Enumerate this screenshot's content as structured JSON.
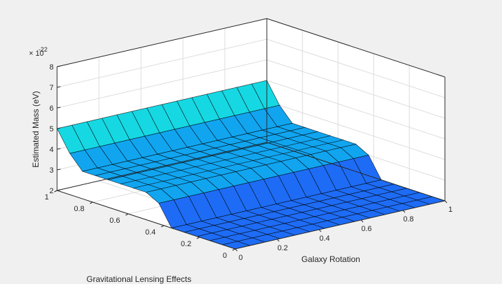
{
  "chart_data": {
    "type": "surface",
    "title": "",
    "xlabel": "Galaxy Rotation",
    "ylabel": "Gravitational Lensing Effects",
    "zlabel": "Estimated Mass (eV)",
    "z_exponent_label": "× 10",
    "z_exponent": "-22",
    "xlim": [
      0,
      1
    ],
    "ylim": [
      0,
      1
    ],
    "zlim": [
      2,
      8
    ],
    "x_ticks": [
      0,
      0.2,
      0.4,
      0.6,
      0.8,
      1
    ],
    "x_tick_labels": [
      "0",
      "0.2",
      "0.4",
      "0.6",
      "0.8",
      "1"
    ],
    "y_ticks": [
      0,
      0.2,
      0.4,
      0.6,
      0.8,
      1
    ],
    "y_tick_labels": [
      "0",
      "0.2",
      "0.4",
      "0.6",
      "0.8",
      "1"
    ],
    "z_ticks": [
      2,
      3,
      4,
      5,
      6,
      7,
      8
    ],
    "z_tick_labels": [
      "2",
      "3",
      "4",
      "5",
      "6",
      "7",
      "8"
    ],
    "grid": true,
    "colormap": [
      "#1e6cf5",
      "#11a5f0",
      "#16d8e3",
      "#38f2bb",
      "#87f58c",
      "#d4f24b",
      "#fbe62a"
    ],
    "x": [
      0,
      0.0714,
      0.1429,
      0.2143,
      0.2857,
      0.3571,
      0.4286,
      0.5,
      0.5714,
      0.6429,
      0.7143,
      0.7857,
      0.8571,
      0.9286,
      1
    ],
    "y": [
      0,
      0.0714,
      0.1429,
      0.2143,
      0.2857,
      0.3571,
      0.4286,
      0.5,
      0.5714,
      0.6429,
      0.7143,
      0.7857,
      0.8571,
      0.9286,
      1
    ],
    "z": [
      [
        2.0,
        2.0,
        2.0,
        2.0,
        2.0,
        2.0,
        2.0,
        2.0,
        2.0,
        2.0,
        2.0,
        2.0,
        2.0,
        2.0,
        2.0
      ],
      [
        2.0,
        2.0,
        2.0,
        2.0,
        2.0,
        2.0,
        2.0,
        2.0,
        2.0,
        2.0,
        2.0,
        2.0,
        2.0,
        2.0,
        2.0
      ],
      [
        2.0,
        2.0,
        2.0,
        2.0,
        2.0,
        2.0,
        2.0,
        2.0,
        2.0,
        2.0,
        2.0,
        2.0,
        2.0,
        2.0,
        2.0
      ],
      [
        2.0,
        2.0,
        2.0,
        2.0,
        2.0,
        2.0,
        2.0,
        2.0,
        2.0,
        2.0,
        2.0,
        2.0,
        2.0,
        2.0,
        2.0
      ],
      [
        2.0,
        2.0,
        2.0,
        2.0,
        2.0,
        2.0,
        2.0,
        2.0,
        2.0,
        2.0,
        2.0,
        2.0,
        2.0,
        2.0,
        2.0
      ],
      [
        2.0,
        2.0,
        2.0,
        2.0,
        2.0,
        2.0,
        2.0,
        2.0,
        2.0,
        2.0,
        2.0,
        2.0,
        2.0,
        2.0,
        2.0
      ],
      [
        3.0,
        3.0,
        3.0,
        3.0,
        3.0,
        3.0,
        3.0,
        3.0,
        3.0,
        3.0,
        3.0,
        3.0,
        3.0,
        3.0,
        3.0
      ],
      [
        3.33,
        3.33,
        3.33,
        3.33,
        3.33,
        3.33,
        3.33,
        3.33,
        3.33,
        3.33,
        3.33,
        3.33,
        3.33,
        3.33,
        3.33
      ],
      [
        3.33,
        3.33,
        3.33,
        3.33,
        3.33,
        3.33,
        3.33,
        3.33,
        3.33,
        3.33,
        3.33,
        3.33,
        3.33,
        3.33,
        3.33
      ],
      [
        3.33,
        3.33,
        3.33,
        3.33,
        3.33,
        3.33,
        3.33,
        3.33,
        3.33,
        3.33,
        3.33,
        3.33,
        3.33,
        3.33,
        3.33
      ],
      [
        3.33,
        3.33,
        3.33,
        3.33,
        3.33,
        3.33,
        3.33,
        3.33,
        3.33,
        3.33,
        3.33,
        3.33,
        3.33,
        3.33,
        3.33
      ],
      [
        3.33,
        3.33,
        3.33,
        3.33,
        3.33,
        3.33,
        3.33,
        3.33,
        3.33,
        3.33,
        3.33,
        3.33,
        3.33,
        3.33,
        3.33
      ],
      [
        3.33,
        3.33,
        3.33,
        3.33,
        3.33,
        3.33,
        3.33,
        3.33,
        3.33,
        3.33,
        3.33,
        3.33,
        3.33,
        3.33,
        3.33
      ],
      [
        4.0,
        4.0,
        4.0,
        4.0,
        4.0,
        4.0,
        4.0,
        4.0,
        4.0,
        4.0,
        4.0,
        4.0,
        4.0,
        4.0,
        4.0
      ],
      [
        5.0,
        5.0,
        5.0,
        5.0,
        5.0,
        5.0,
        5.0,
        5.0,
        5.0,
        5.0,
        5.0,
        5.0,
        5.0,
        5.0,
        5.0
      ]
    ]
  }
}
